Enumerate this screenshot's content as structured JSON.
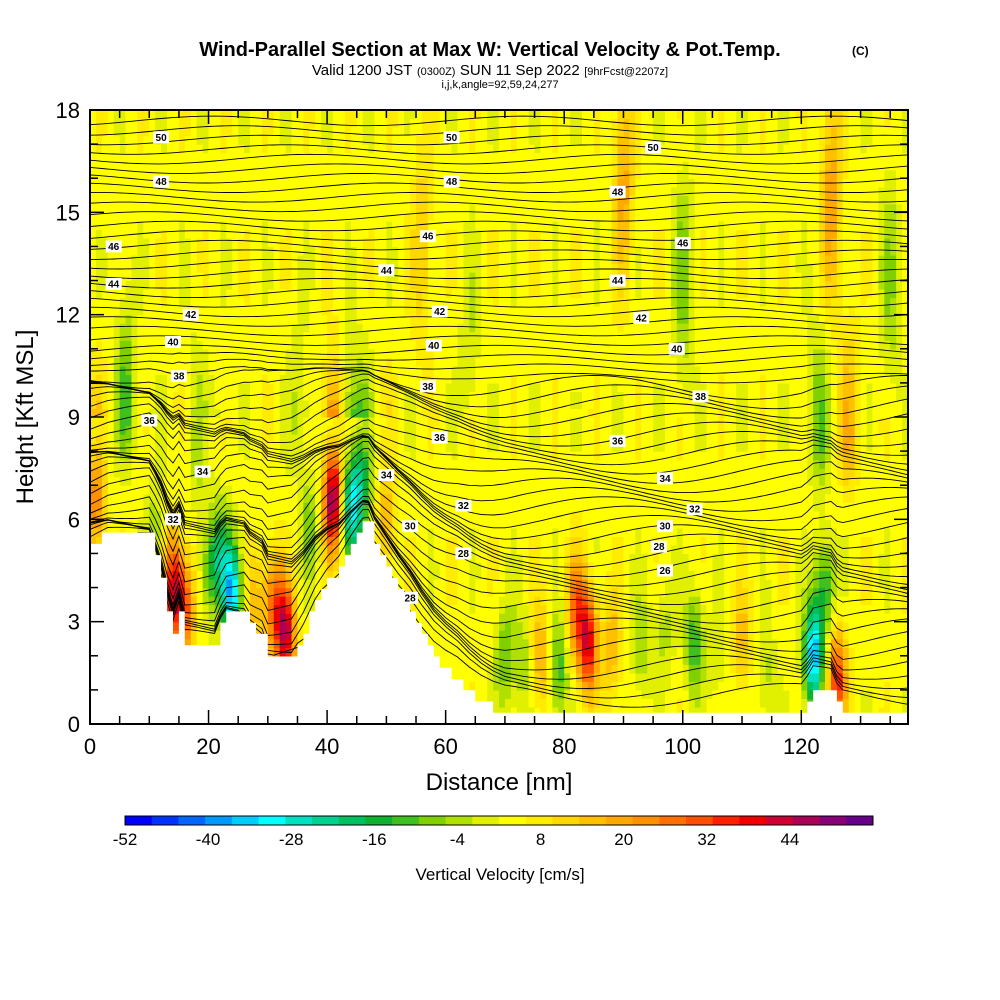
{
  "title": {
    "main": "Wind-Parallel Section at Max W: Vertical Velocity & Pot.Temp.",
    "copyright": "(C)",
    "valid_prefix": "Valid 1200 JST",
    "valid_z": "(0300Z)",
    "valid_date": "SUN 11 Sep 2022",
    "forecast": "[9hrFcst@2207z]",
    "indices": "i,j,k,angle=92,59,24,277"
  },
  "chart_data": {
    "type": "heatmap",
    "title": "Wind-Parallel Section at Max W: Vertical Velocity & Pot.Temp.",
    "xlabel": "Distance [nm]",
    "ylabel": "Height [Kft MSL]",
    "xlim": [
      0,
      138
    ],
    "ylim": [
      0,
      18
    ],
    "x_ticks": [
      "0",
      "20",
      "40",
      "60",
      "80",
      "100",
      "120"
    ],
    "y_ticks": [
      "0",
      "3",
      "6",
      "9",
      "12",
      "15",
      "18"
    ],
    "grid": false,
    "colorbar": {
      "title": "Vertical Velocity [cm/s]",
      "tick_labels": [
        "-52",
        "-40",
        "-28",
        "-16",
        "-4",
        "8",
        "20",
        "32",
        "44"
      ],
      "min": -52,
      "max": 52,
      "step": 4,
      "colors": [
        "#0000ff",
        "#0033ff",
        "#0066ff",
        "#0099ff",
        "#00ccff",
        "#00ffff",
        "#00e0c0",
        "#00d090",
        "#00c060",
        "#10b030",
        "#40c020",
        "#80d000",
        "#b0e000",
        "#e0f000",
        "#ffff00",
        "#ffec00",
        "#ffd800",
        "#ffc000",
        "#ffa800",
        "#ff9000",
        "#ff7000",
        "#ff5000",
        "#ff2000",
        "#ee0000",
        "#cc0033",
        "#aa0055",
        "#880077",
        "#660088"
      ]
    },
    "terrain_kft": [
      [
        0,
        5.3
      ],
      [
        3,
        5.6
      ],
      [
        10,
        5.6
      ],
      [
        11,
        5.0
      ],
      [
        12,
        4.3
      ],
      [
        13,
        3.3
      ],
      [
        13.5,
        2.6
      ],
      [
        14.5,
        2.6
      ],
      [
        15,
        3.3
      ],
      [
        16,
        2.3
      ],
      [
        21,
        2.3
      ],
      [
        22,
        2.9
      ],
      [
        23,
        3.3
      ],
      [
        26,
        3.3
      ],
      [
        27,
        2.9
      ],
      [
        29,
        2.6
      ],
      [
        30,
        2.0
      ],
      [
        34,
        2.0
      ],
      [
        36,
        2.7
      ],
      [
        38,
        3.6
      ],
      [
        40,
        4.2
      ],
      [
        42,
        4.6
      ],
      [
        44,
        5.3
      ],
      [
        46,
        5.9
      ],
      [
        47,
        5.9
      ],
      [
        48,
        5.3
      ],
      [
        50,
        4.6
      ],
      [
        52,
        3.9
      ],
      [
        54,
        3.3
      ],
      [
        56,
        2.6
      ],
      [
        58,
        2.0
      ],
      [
        60,
        1.6
      ],
      [
        62,
        1.3
      ],
      [
        64,
        0.9
      ],
      [
        66,
        0.6
      ],
      [
        68,
        0.4
      ],
      [
        70,
        0.3
      ],
      [
        80,
        0.3
      ],
      [
        100,
        0.3
      ],
      [
        120,
        0.3
      ],
      [
        121,
        0.6
      ],
      [
        122,
        1.0
      ],
      [
        125,
        1.0
      ],
      [
        126,
        0.5
      ],
      [
        127,
        0.3
      ],
      [
        138,
        0.3
      ]
    ],
    "w_features": [
      {
        "x": 1,
        "z": 6.5,
        "w": 22
      },
      {
        "x": 11,
        "z": 5.5,
        "w": -10
      },
      {
        "x": 14,
        "z": 4.0,
        "w": 36
      },
      {
        "x": 16,
        "z": 3.4,
        "w": 28
      },
      {
        "x": 20,
        "z": 4.5,
        "w": -14
      },
      {
        "x": 24,
        "z": 3.8,
        "w": -40
      },
      {
        "x": 22,
        "z": 5.0,
        "w": -20
      },
      {
        "x": 28,
        "z": 3.6,
        "w": 12
      },
      {
        "x": 33,
        "z": 2.6,
        "w": 40
      },
      {
        "x": 31,
        "z": 3.5,
        "w": 24
      },
      {
        "x": 37,
        "z": 5.8,
        "w": -12
      },
      {
        "x": 41,
        "z": 6.6,
        "w": 48
      },
      {
        "x": 44,
        "z": 6.4,
        "w": -34
      },
      {
        "x": 46,
        "z": 7.0,
        "w": -20
      },
      {
        "x": 50,
        "z": 6.0,
        "w": 14
      },
      {
        "x": 6,
        "z": 9.3,
        "w": -16
      },
      {
        "x": 18,
        "z": 8.0,
        "w": -8
      },
      {
        "x": 35,
        "z": 9.0,
        "w": -6
      },
      {
        "x": 70,
        "z": 2.0,
        "w": -14
      },
      {
        "x": 73,
        "z": 1.8,
        "w": -10
      },
      {
        "x": 76,
        "z": 2.0,
        "w": 16
      },
      {
        "x": 79,
        "z": 1.6,
        "w": -18
      },
      {
        "x": 84,
        "z": 2.4,
        "w": 38
      },
      {
        "x": 82,
        "z": 3.5,
        "w": 24
      },
      {
        "x": 88,
        "z": 2.2,
        "w": 14
      },
      {
        "x": 93,
        "z": 2.3,
        "w": -10
      },
      {
        "x": 97,
        "z": 2.8,
        "w": -8
      },
      {
        "x": 102,
        "z": 2.4,
        "w": -18
      },
      {
        "x": 106,
        "z": 2.0,
        "w": -6
      },
      {
        "x": 110,
        "z": 2.5,
        "w": 12
      },
      {
        "x": 114,
        "z": 1.5,
        "w": -8
      },
      {
        "x": 122,
        "z": 2.0,
        "w": -42
      },
      {
        "x": 124,
        "z": 4.0,
        "w": -20
      },
      {
        "x": 126,
        "z": 1.3,
        "w": 32
      },
      {
        "x": 123,
        "z": 8.5,
        "w": -14
      },
      {
        "x": 128,
        "z": 8.5,
        "w": 14
      },
      {
        "x": 100,
        "z": 13.0,
        "w": -12
      },
      {
        "x": 64,
        "z": 11.0,
        "w": -6
      },
      {
        "x": 125,
        "z": 15.5,
        "w": 18
      },
      {
        "x": 135,
        "z": 13.0,
        "w": -10
      },
      {
        "x": 90,
        "z": 16.0,
        "w": 16
      },
      {
        "x": 56,
        "z": 14.0,
        "w": 10
      }
    ],
    "theta_labels": [
      {
        "text": "50",
        "x": 12,
        "z": 17.2
      },
      {
        "text": "50",
        "x": 61,
        "z": 17.2
      },
      {
        "text": "50",
        "x": 95,
        "z": 16.9
      },
      {
        "text": "48",
        "x": 12,
        "z": 15.9
      },
      {
        "text": "48",
        "x": 61,
        "z": 15.9
      },
      {
        "text": "48",
        "x": 89,
        "z": 15.6
      },
      {
        "text": "46",
        "x": 4,
        "z": 14.0
      },
      {
        "text": "46",
        "x": 57,
        "z": 14.3
      },
      {
        "text": "46",
        "x": 100,
        "z": 14.1
      },
      {
        "text": "44",
        "x": 4,
        "z": 12.9
      },
      {
        "text": "44",
        "x": 50,
        "z": 13.3
      },
      {
        "text": "44",
        "x": 89,
        "z": 13.0
      },
      {
        "text": "42",
        "x": 17,
        "z": 12.0
      },
      {
        "text": "42",
        "x": 59,
        "z": 12.1
      },
      {
        "text": "42",
        "x": 93,
        "z": 11.9
      },
      {
        "text": "40",
        "x": 14,
        "z": 11.2
      },
      {
        "text": "40",
        "x": 58,
        "z": 11.1
      },
      {
        "text": "40",
        "x": 99,
        "z": 11.0
      },
      {
        "text": "38",
        "x": 15,
        "z": 10.2
      },
      {
        "text": "38",
        "x": 57,
        "z": 9.9
      },
      {
        "text": "38",
        "x": 103,
        "z": 9.6
      },
      {
        "text": "36",
        "x": 10,
        "z": 8.9
      },
      {
        "text": "36",
        "x": 59,
        "z": 8.4
      },
      {
        "text": "36",
        "x": 89,
        "z": 8.3
      },
      {
        "text": "34",
        "x": 19,
        "z": 7.4
      },
      {
        "text": "34",
        "x": 50,
        "z": 7.3
      },
      {
        "text": "34",
        "x": 97,
        "z": 7.2
      },
      {
        "text": "32",
        "x": 14,
        "z": 6.0
      },
      {
        "text": "32",
        "x": 63,
        "z": 6.4
      },
      {
        "text": "32",
        "x": 102,
        "z": 6.3
      },
      {
        "text": "30",
        "x": 54,
        "z": 5.8
      },
      {
        "text": "30",
        "x": 97,
        "z": 5.8
      },
      {
        "text": "28",
        "x": 63,
        "z": 5.0
      },
      {
        "text": "28",
        "x": 96,
        "z": 5.2
      },
      {
        "text": "28",
        "x": 54,
        "z": 3.7
      },
      {
        "text": "26",
        "x": 97,
        "z": 4.5
      }
    ]
  }
}
